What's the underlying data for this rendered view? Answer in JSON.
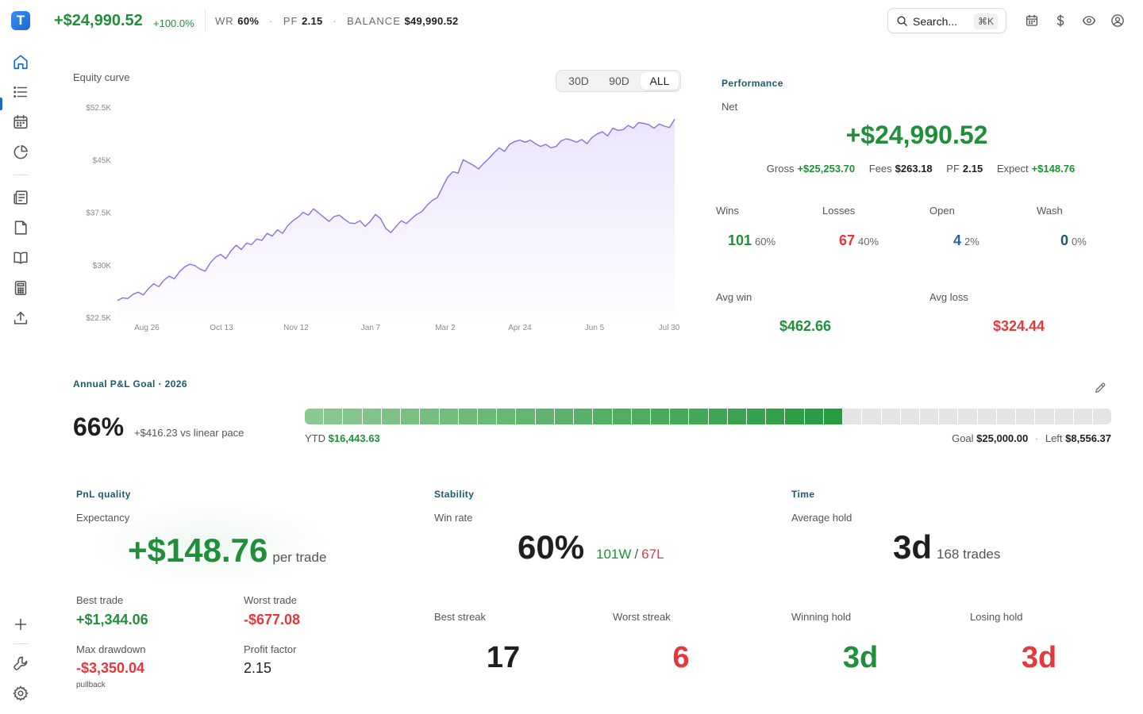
{
  "header": {
    "logo_letter": "T",
    "net": "+$24,990.52",
    "net_pct": "+100.0%",
    "wr_label": "WR",
    "wr_value": "60%",
    "pf_label": "PF",
    "pf_value": "2.15",
    "balance_label": "BALANCE",
    "balance_value": "$49,990.52",
    "search_label": "Search...",
    "search_shortcut": "⌘K",
    "icons": [
      "calendar-icon",
      "dollar-icon",
      "eye-icon",
      "user-circle-icon"
    ]
  },
  "sidebar": {
    "items": [
      "home-icon",
      "list-icon",
      "calendar-icon",
      "pie-chart-icon",
      "news-icon",
      "file-icon",
      "book-icon",
      "calculator-icon",
      "upload-icon"
    ],
    "bottom": [
      "plus-icon",
      "wrench-icon",
      "gear-icon"
    ]
  },
  "equity": {
    "title": "Equity curve",
    "ranges": [
      "30D",
      "90D",
      "ALL"
    ],
    "active_range": "ALL"
  },
  "chart_data": {
    "type": "area",
    "title": "Equity curve",
    "x_ticks": [
      "Aug 26",
      "Oct 13",
      "Nov 12",
      "Jan 7",
      "Mar 2",
      "Apr 24",
      "Jun 5",
      "Jul 30"
    ],
    "y_ticks": [
      "$52.5K",
      "$45K",
      "$37.5K",
      "$30K",
      "$22.5K"
    ],
    "ylim": [
      22500,
      52500
    ],
    "color": "#8b6fe0",
    "values": [
      25000,
      25400,
      25300,
      25900,
      26200,
      25800,
      26700,
      27400,
      27000,
      27900,
      28500,
      28100,
      29100,
      29800,
      30200,
      30000,
      29500,
      29200,
      30400,
      31200,
      31600,
      31000,
      32100,
      32900,
      32300,
      33200,
      33000,
      33800,
      33600,
      34600,
      34200,
      35100,
      34600,
      35700,
      36400,
      36900,
      37600,
      37200,
      38100,
      37500,
      36900,
      36300,
      37000,
      37200,
      36600,
      36100,
      36000,
      36400,
      35600,
      36300,
      37300,
      36700,
      35300,
      34700,
      35600,
      36400,
      36000,
      36700,
      37300,
      37700,
      38600,
      39300,
      39700,
      41200,
      42600,
      43400,
      43200,
      45100,
      44700,
      44300,
      43800,
      44600,
      45300,
      46100,
      46800,
      46300,
      47300,
      47700,
      47900,
      47600,
      47900,
      47400,
      47000,
      47300,
      46800,
      47000,
      47800,
      48100,
      47900,
      47600,
      48000,
      47400,
      48300,
      48800,
      49100,
      48500,
      49600,
      49300,
      49400,
      50000,
      49600,
      50400,
      50300,
      50100,
      49600,
      50200,
      49900,
      49700,
      50900
    ]
  },
  "performance": {
    "title": "Performance",
    "net_label": "Net",
    "net_value": "+$24,990.52",
    "gross_label": "Gross",
    "gross_value": "+$25,253.70",
    "fees_label": "Fees",
    "fees_value": "$263.18",
    "pf_label": "PF",
    "pf_value": "2.15",
    "expect_label": "Expect",
    "expect_value": "+$148.76",
    "wins_label": "Wins",
    "wins_count": "101",
    "wins_pct": "60%",
    "losses_label": "Losses",
    "losses_count": "67",
    "losses_pct": "40%",
    "open_label": "Open",
    "open_count": "4",
    "open_pct": "2%",
    "wash_label": "Wash",
    "wash_count": "0",
    "wash_pct": "0%",
    "avg_win_label": "Avg win",
    "avg_win_value": "$462.66",
    "avg_loss_label": "Avg loss",
    "avg_loss_value": "$324.44"
  },
  "goal": {
    "title": "Annual P&L Goal · 2026",
    "pct": "66%",
    "pace": "+$416.23 vs linear pace",
    "ytd_label": "YTD",
    "ytd_value": "$16,443.63",
    "goal_label": "Goal",
    "goal_value": "$25,000.00",
    "left_label": "Left",
    "left_value": "$8,556.37",
    "progress": 0.66,
    "segments": 42
  },
  "quality": {
    "title": "PnL quality",
    "expectancy_label": "Expectancy",
    "expectancy_value": "+$148.76",
    "expectancy_unit": "per trade",
    "best_label": "Best trade",
    "best_value": "+$1,344.06",
    "worst_label": "Worst trade",
    "worst_value": "-$677.08",
    "dd_label": "Max drawdown",
    "dd_value": "-$3,350.04",
    "dd_note": "pullback",
    "pf_label": "Profit factor",
    "pf_value": "2.15"
  },
  "stability": {
    "title": "Stability",
    "winrate_label": "Win rate",
    "winrate_value": "60%",
    "wins": "101W",
    "sep": "/",
    "losses": "67L",
    "best_streak_label": "Best streak",
    "best_streak_value": "17",
    "worst_streak_label": "Worst streak",
    "worst_streak_value": "6"
  },
  "time": {
    "title": "Time",
    "avg_hold_label": "Average hold",
    "avg_hold_value": "3d",
    "trades": "168 trades",
    "win_hold_label": "Winning hold",
    "win_hold_value": "3d",
    "lose_hold_label": "Losing hold",
    "lose_hold_value": "3d"
  }
}
